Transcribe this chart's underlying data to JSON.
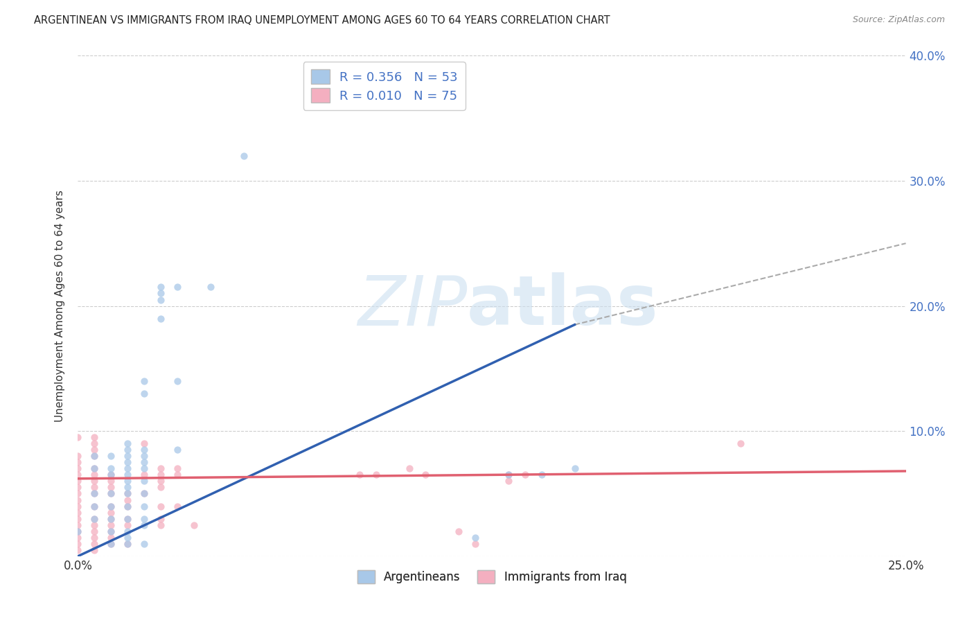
{
  "title": "ARGENTINEAN VS IMMIGRANTS FROM IRAQ UNEMPLOYMENT AMONG AGES 60 TO 64 YEARS CORRELATION CHART",
  "source": "Source: ZipAtlas.com",
  "ylabel": "Unemployment Among Ages 60 to 64 years",
  "xlim": [
    0.0,
    0.25
  ],
  "ylim": [
    0.0,
    0.4
  ],
  "xticks": [
    0.0,
    0.05,
    0.1,
    0.15,
    0.2,
    0.25
  ],
  "yticks": [
    0.0,
    0.1,
    0.2,
    0.3,
    0.4
  ],
  "xtick_labels": [
    "0.0%",
    "",
    "",
    "",
    "",
    "25.0%"
  ],
  "right_ytick_labels": [
    "",
    "10.0%",
    "20.0%",
    "30.0%",
    "40.0%"
  ],
  "argentineans_color": "#a8c8e8",
  "immigrants_color": "#f4afc0",
  "trend_arg_color": "#3060b0",
  "trend_imm_color": "#e06070",
  "trend_arg_x0": 0.0,
  "trend_arg_y0": 0.0,
  "trend_arg_x1": 0.15,
  "trend_arg_y1": 0.185,
  "trend_arg_dash_x0": 0.15,
  "trend_arg_dash_y0": 0.185,
  "trend_arg_dash_x1": 0.25,
  "trend_arg_dash_y1": 0.25,
  "trend_imm_x0": 0.0,
  "trend_imm_y0": 0.062,
  "trend_imm_x1": 0.25,
  "trend_imm_y1": 0.068,
  "argentineans_scatter": [
    [
      0.0,
      0.02
    ],
    [
      0.005,
      0.05
    ],
    [
      0.005,
      0.04
    ],
    [
      0.005,
      0.07
    ],
    [
      0.005,
      0.08
    ],
    [
      0.005,
      0.03
    ],
    [
      0.01,
      0.08
    ],
    [
      0.01,
      0.07
    ],
    [
      0.01,
      0.065
    ],
    [
      0.01,
      0.05
    ],
    [
      0.01,
      0.04
    ],
    [
      0.01,
      0.03
    ],
    [
      0.01,
      0.02
    ],
    [
      0.01,
      0.01
    ],
    [
      0.015,
      0.09
    ],
    [
      0.015,
      0.085
    ],
    [
      0.015,
      0.08
    ],
    [
      0.015,
      0.075
    ],
    [
      0.015,
      0.07
    ],
    [
      0.015,
      0.065
    ],
    [
      0.015,
      0.06
    ],
    [
      0.015,
      0.055
    ],
    [
      0.015,
      0.05
    ],
    [
      0.015,
      0.04
    ],
    [
      0.015,
      0.03
    ],
    [
      0.015,
      0.02
    ],
    [
      0.015,
      0.015
    ],
    [
      0.015,
      0.01
    ],
    [
      0.02,
      0.14
    ],
    [
      0.02,
      0.13
    ],
    [
      0.02,
      0.085
    ],
    [
      0.02,
      0.08
    ],
    [
      0.02,
      0.075
    ],
    [
      0.02,
      0.07
    ],
    [
      0.02,
      0.06
    ],
    [
      0.02,
      0.05
    ],
    [
      0.02,
      0.04
    ],
    [
      0.02,
      0.03
    ],
    [
      0.02,
      0.025
    ],
    [
      0.02,
      0.01
    ],
    [
      0.025,
      0.215
    ],
    [
      0.025,
      0.21
    ],
    [
      0.025,
      0.205
    ],
    [
      0.025,
      0.19
    ],
    [
      0.03,
      0.215
    ],
    [
      0.03,
      0.14
    ],
    [
      0.03,
      0.085
    ],
    [
      0.04,
      0.215
    ],
    [
      0.05,
      0.32
    ],
    [
      0.12,
      0.015
    ],
    [
      0.13,
      0.065
    ],
    [
      0.14,
      0.065
    ],
    [
      0.15,
      0.07
    ]
  ],
  "immigrants_scatter": [
    [
      0.0,
      0.095
    ],
    [
      0.0,
      0.08
    ],
    [
      0.0,
      0.075
    ],
    [
      0.0,
      0.07
    ],
    [
      0.0,
      0.065
    ],
    [
      0.0,
      0.06
    ],
    [
      0.0,
      0.055
    ],
    [
      0.0,
      0.05
    ],
    [
      0.0,
      0.045
    ],
    [
      0.0,
      0.04
    ],
    [
      0.0,
      0.035
    ],
    [
      0.0,
      0.03
    ],
    [
      0.0,
      0.025
    ],
    [
      0.0,
      0.02
    ],
    [
      0.0,
      0.015
    ],
    [
      0.0,
      0.01
    ],
    [
      0.0,
      0.005
    ],
    [
      0.005,
      0.095
    ],
    [
      0.005,
      0.09
    ],
    [
      0.005,
      0.085
    ],
    [
      0.005,
      0.08
    ],
    [
      0.005,
      0.07
    ],
    [
      0.005,
      0.065
    ],
    [
      0.005,
      0.06
    ],
    [
      0.005,
      0.055
    ],
    [
      0.005,
      0.05
    ],
    [
      0.005,
      0.04
    ],
    [
      0.005,
      0.03
    ],
    [
      0.005,
      0.025
    ],
    [
      0.005,
      0.02
    ],
    [
      0.005,
      0.015
    ],
    [
      0.005,
      0.01
    ],
    [
      0.005,
      0.005
    ],
    [
      0.01,
      0.065
    ],
    [
      0.01,
      0.06
    ],
    [
      0.01,
      0.055
    ],
    [
      0.01,
      0.05
    ],
    [
      0.01,
      0.04
    ],
    [
      0.01,
      0.035
    ],
    [
      0.01,
      0.03
    ],
    [
      0.01,
      0.025
    ],
    [
      0.01,
      0.02
    ],
    [
      0.01,
      0.015
    ],
    [
      0.01,
      0.01
    ],
    [
      0.015,
      0.05
    ],
    [
      0.015,
      0.045
    ],
    [
      0.015,
      0.04
    ],
    [
      0.015,
      0.03
    ],
    [
      0.015,
      0.025
    ],
    [
      0.015,
      0.01
    ],
    [
      0.02,
      0.09
    ],
    [
      0.02,
      0.065
    ],
    [
      0.02,
      0.05
    ],
    [
      0.025,
      0.07
    ],
    [
      0.025,
      0.065
    ],
    [
      0.025,
      0.06
    ],
    [
      0.025,
      0.055
    ],
    [
      0.025,
      0.04
    ],
    [
      0.025,
      0.03
    ],
    [
      0.025,
      0.025
    ],
    [
      0.03,
      0.07
    ],
    [
      0.03,
      0.065
    ],
    [
      0.03,
      0.04
    ],
    [
      0.035,
      0.025
    ],
    [
      0.085,
      0.065
    ],
    [
      0.09,
      0.065
    ],
    [
      0.1,
      0.07
    ],
    [
      0.105,
      0.065
    ],
    [
      0.115,
      0.02
    ],
    [
      0.12,
      0.01
    ],
    [
      0.13,
      0.065
    ],
    [
      0.13,
      0.06
    ],
    [
      0.135,
      0.065
    ],
    [
      0.2,
      0.09
    ]
  ]
}
